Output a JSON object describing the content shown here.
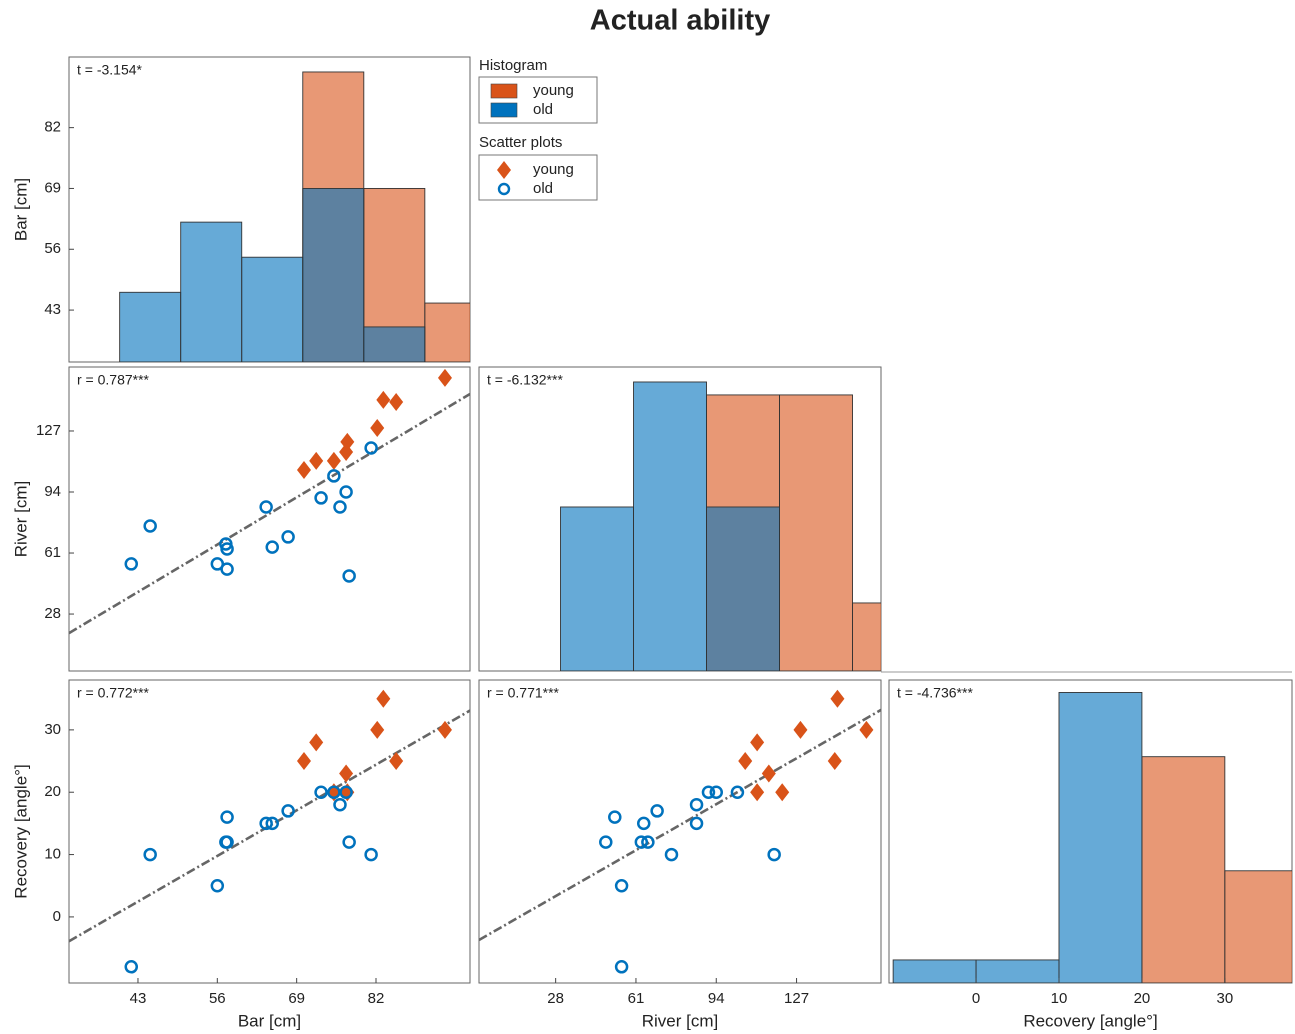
{
  "title": "Actual ability",
  "legend": {
    "titles": [
      "Histogram",
      "Scatter plots"
    ]
  },
  "chart_data": [
    {
      "type": "histogram",
      "annotation": "t = -3.154*",
      "ylabel": "Bar [cm]",
      "bins": [
        40,
        50,
        60,
        70,
        80,
        90,
        100
      ],
      "xlim": [
        31.7,
        97.4
      ],
      "ylim": [
        31.9,
        97.1
      ],
      "yticks": [
        43,
        56,
        69,
        82
      ],
      "series": [
        {
          "name": "young",
          "color": "#D95319",
          "values": [
            null,
            null,
            null,
            93.9,
            69,
            44.5
          ]
        },
        {
          "name": "old",
          "color": "#0072BD",
          "values": [
            46.8,
            61.8,
            54.3,
            69,
            39.4,
            null
          ]
        }
      ]
    },
    {
      "type": "scatter",
      "annotation": "r = 0.787***",
      "ylabel": "River [cm]",
      "xlim": [
        31.7,
        97.4
      ],
      "ylim": [
        -2.8,
        161.6
      ],
      "yticks": [
        28,
        61,
        94,
        127
      ],
      "fit": {
        "x": [
          31.7,
          97.4
        ],
        "values": [
          17.7,
          147.0
        ]
      },
      "series": [
        {
          "name": "young",
          "color": "#D95319",
          "marker": "diamond",
          "x": [
            93.3,
            83.2,
            85.3,
            82.2,
            77.3,
            77.1,
            75.1,
            72.2,
            70.2
          ],
          "values": [
            155.7,
            143.8,
            142.7,
            128.6,
            121.1,
            115.6,
            110.8,
            110.8,
            105.9
          ]
        },
        {
          "name": "old",
          "color": "#0072BD",
          "marker": "circle",
          "x": [
            81.2,
            75.1,
            77.1,
            73.0,
            76.1,
            64.0,
            67.6,
            65.0,
            57.4,
            57.6,
            56.0,
            57.6,
            41.9,
            45.0,
            77.6
          ],
          "values": [
            117.8,
            102.7,
            94.0,
            90.8,
            85.9,
            85.9,
            69.7,
            64.2,
            65.9,
            63.2,
            55.1,
            52.3,
            55.1,
            75.6,
            48.6
          ]
        }
      ]
    },
    {
      "type": "histogram",
      "annotation": "t = -6.132***",
      "bins": [
        30,
        60,
        90,
        120,
        150,
        180
      ],
      "xlim": [
        -3.5,
        161.7
      ],
      "ylim": [
        -2.8,
        161.6
      ],
      "series": [
        {
          "color": "#D95319",
          "values": [
            null,
            null,
            146.5,
            146.5,
            34.0
          ]
        },
        {
          "color": "#0072BD",
          "values": [
            85.9,
            153.5,
            85.9,
            null,
            null
          ]
        }
      ]
    },
    {
      "type": "scatter",
      "annotation": "r = 0.772***",
      "ylabel": "Recovery [angle°]",
      "xlabel": "Bar [cm]",
      "xlim": [
        31.7,
        97.4
      ],
      "ylim": [
        -10.6,
        38.0
      ],
      "xticks": [
        43,
        56,
        69,
        82
      ],
      "yticks": [
        0,
        10,
        20,
        30
      ],
      "fit": {
        "x": [
          31.7,
          97.4
        ],
        "values": [
          -3.9,
          33.1
        ]
      },
      "series": [
        {
          "color": "#D95319",
          "marker": "diamond",
          "x": [
            93.3,
            83.2,
            85.3,
            82.2,
            77.3,
            77.1,
            75.1,
            72.2,
            70.2
          ],
          "values": [
            30,
            35,
            25,
            30,
            20,
            23,
            20,
            28,
            25
          ]
        },
        {
          "color": "#0072BD",
          "marker": "circle",
          "x": [
            81.2,
            75.1,
            77.1,
            73.0,
            76.1,
            64.0,
            67.6,
            65.0,
            57.4,
            57.6,
            56.0,
            57.6,
            41.9,
            45.0,
            77.6
          ],
          "values": [
            10,
            20,
            20,
            20,
            18,
            15,
            17,
            15,
            12,
            12,
            5,
            16,
            -8,
            10,
            12
          ]
        }
      ]
    },
    {
      "type": "scatter",
      "annotation": "r = 0.771***",
      "xlabel": "River [cm]",
      "xlim": [
        -3.5,
        161.7
      ],
      "ylim": [
        -10.6,
        38.0
      ],
      "xticks": [
        28,
        61,
        94,
        127
      ],
      "fit": {
        "x": [
          -3.5,
          161.7
        ],
        "values": [
          -3.7,
          33.2
        ]
      },
      "series": [
        {
          "color": "#D95319",
          "marker": "diamond",
          "x": [
            155.7,
            143.8,
            142.7,
            128.6,
            121.1,
            115.6,
            110.8,
            110.8,
            105.9
          ],
          "values": [
            30,
            35,
            25,
            30,
            20,
            23,
            20,
            28,
            25
          ]
        },
        {
          "color": "#0072BD",
          "marker": "circle",
          "x": [
            117.8,
            102.7,
            94.0,
            90.8,
            85.9,
            85.9,
            69.7,
            64.2,
            65.9,
            63.2,
            55.1,
            52.3,
            55.1,
            75.6,
            48.6
          ],
          "values": [
            10,
            20,
            20,
            20,
            18,
            15,
            17,
            15,
            12,
            12,
            5,
            16,
            -8,
            10,
            12
          ]
        }
      ]
    },
    {
      "type": "histogram",
      "annotation": "t = -4.736***",
      "xlabel": "Recovery [angle°]",
      "bins": [
        -10,
        0,
        10,
        20,
        30,
        40
      ],
      "xlim": [
        -10.5,
        38.1
      ],
      "ylim": [
        -10.6,
        38.0
      ],
      "xticks": [
        0,
        10,
        20,
        30
      ],
      "series": [
        {
          "color": "#D95319",
          "values": [
            null,
            null,
            null,
            25.7,
            7.4
          ]
        },
        {
          "color": "#0072BD",
          "values": [
            -6.9,
            -6.9,
            36.0,
            null,
            null
          ]
        }
      ]
    }
  ]
}
